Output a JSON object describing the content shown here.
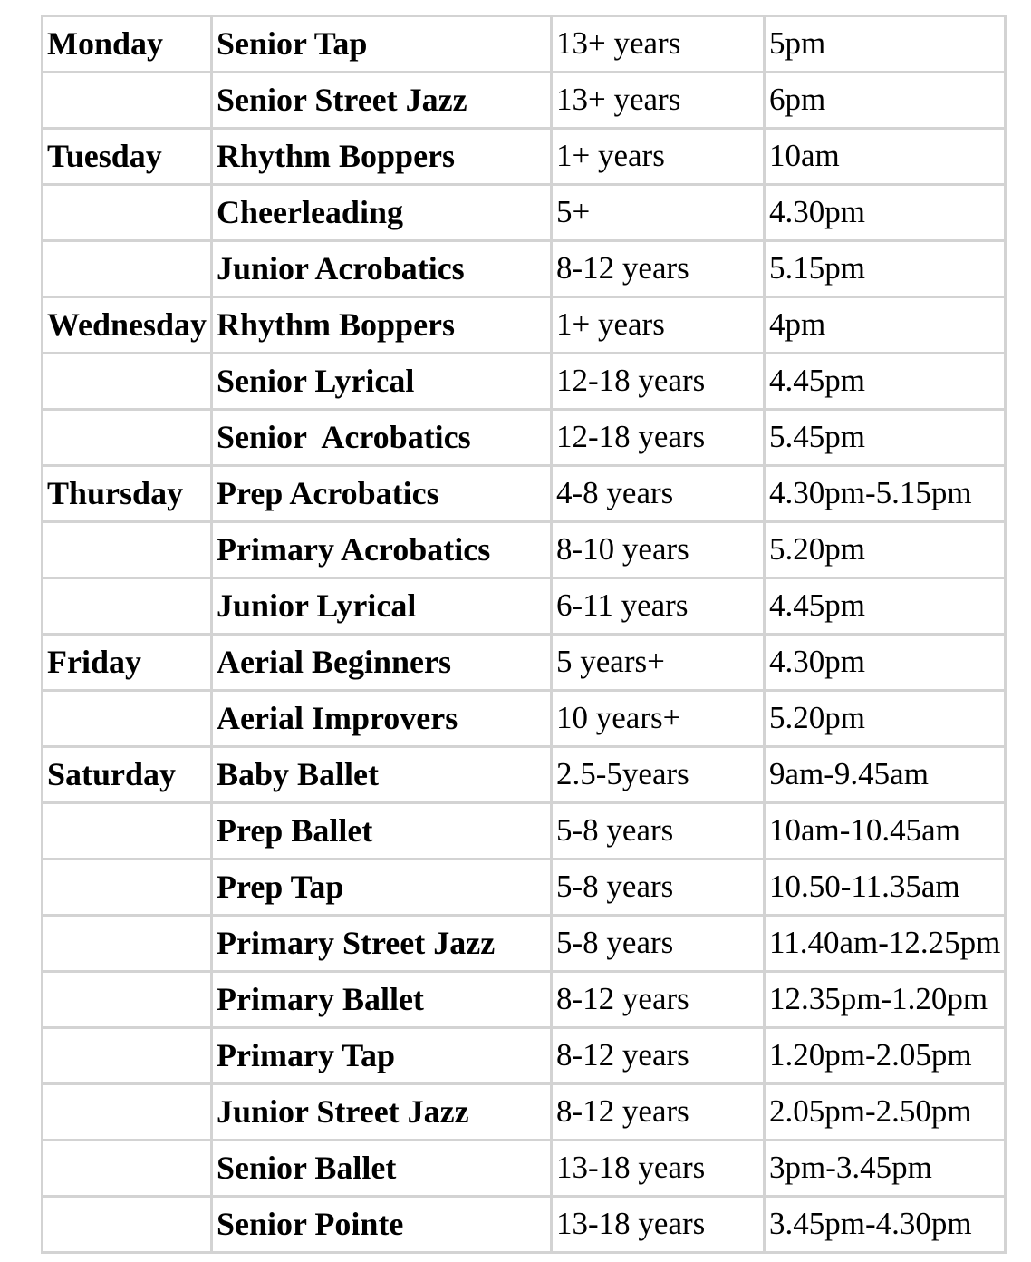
{
  "table": {
    "border_color": "#d3d3d3",
    "text_color": "#000000",
    "background_color": "#ffffff",
    "columns": [
      "day",
      "class_name",
      "age_range",
      "time"
    ],
    "rows": [
      {
        "day": "Monday",
        "class_name": "Senior Tap",
        "age_range": "13+ years",
        "time": "5pm"
      },
      {
        "day": "",
        "class_name": "Senior Street Jazz",
        "age_range": "13+ years",
        "time": "6pm"
      },
      {
        "day": "Tuesday",
        "class_name": "Rhythm Boppers",
        "age_range": "1+ years",
        "time": "10am"
      },
      {
        "day": "",
        "class_name": "Cheerleading",
        "age_range": "5+",
        "time": "4.30pm"
      },
      {
        "day": "",
        "class_name": "Junior Acrobatics",
        "age_range": "8-12 years",
        "time": "5.15pm"
      },
      {
        "day": "Wednesday",
        "class_name": "Rhythm Boppers",
        "age_range": "1+ years",
        "time": "4pm"
      },
      {
        "day": "",
        "class_name": "Senior Lyrical",
        "age_range": "12-18 years",
        "time": "4.45pm"
      },
      {
        "day": "",
        "class_name": "Senior  Acrobatics",
        "age_range": "12-18 years",
        "time": "5.45pm"
      },
      {
        "day": "Thursday",
        "class_name": "Prep Acrobatics",
        "age_range": "4-8 years",
        "time": "4.30pm-5.15pm"
      },
      {
        "day": "",
        "class_name": "Primary Acrobatics",
        "age_range": "8-10 years",
        "time": "5.20pm"
      },
      {
        "day": "",
        "class_name": "Junior Lyrical",
        "age_range": "6-11 years",
        "time": "4.45pm"
      },
      {
        "day": "Friday",
        "class_name": "Aerial Beginners",
        "age_range": "5 years+",
        "time": "4.30pm"
      },
      {
        "day": "",
        "class_name": "Aerial Improvers",
        "age_range": "10 years+",
        "time": "5.20pm"
      },
      {
        "day": "Saturday",
        "class_name": "Baby Ballet",
        "age_range": "2.5-5years",
        "time": "9am-9.45am"
      },
      {
        "day": "",
        "class_name": "Prep Ballet",
        "age_range": "5-8 years",
        "time": "10am-10.45am"
      },
      {
        "day": "",
        "class_name": "Prep Tap",
        "age_range": "5-8 years",
        "time": "10.50-11.35am"
      },
      {
        "day": "",
        "class_name": "Primary Street Jazz",
        "age_range": "5-8 years",
        "time": "11.40am-12.25pm"
      },
      {
        "day": "",
        "class_name": "Primary Ballet",
        "age_range": "8-12 years",
        "time": "12.35pm-1.20pm"
      },
      {
        "day": "",
        "class_name": "Primary Tap",
        "age_range": "8-12 years",
        "time": "1.20pm-2.05pm"
      },
      {
        "day": "",
        "class_name": "Junior Street Jazz",
        "age_range": "8-12 years",
        "time": "2.05pm-2.50pm"
      },
      {
        "day": "",
        "class_name": "Senior Ballet",
        "age_range": "13-18 years",
        "time": "3pm-3.45pm"
      },
      {
        "day": "",
        "class_name": "Senior Pointe",
        "age_range": "13-18 years",
        "time": "3.45pm-4.30pm"
      }
    ]
  }
}
